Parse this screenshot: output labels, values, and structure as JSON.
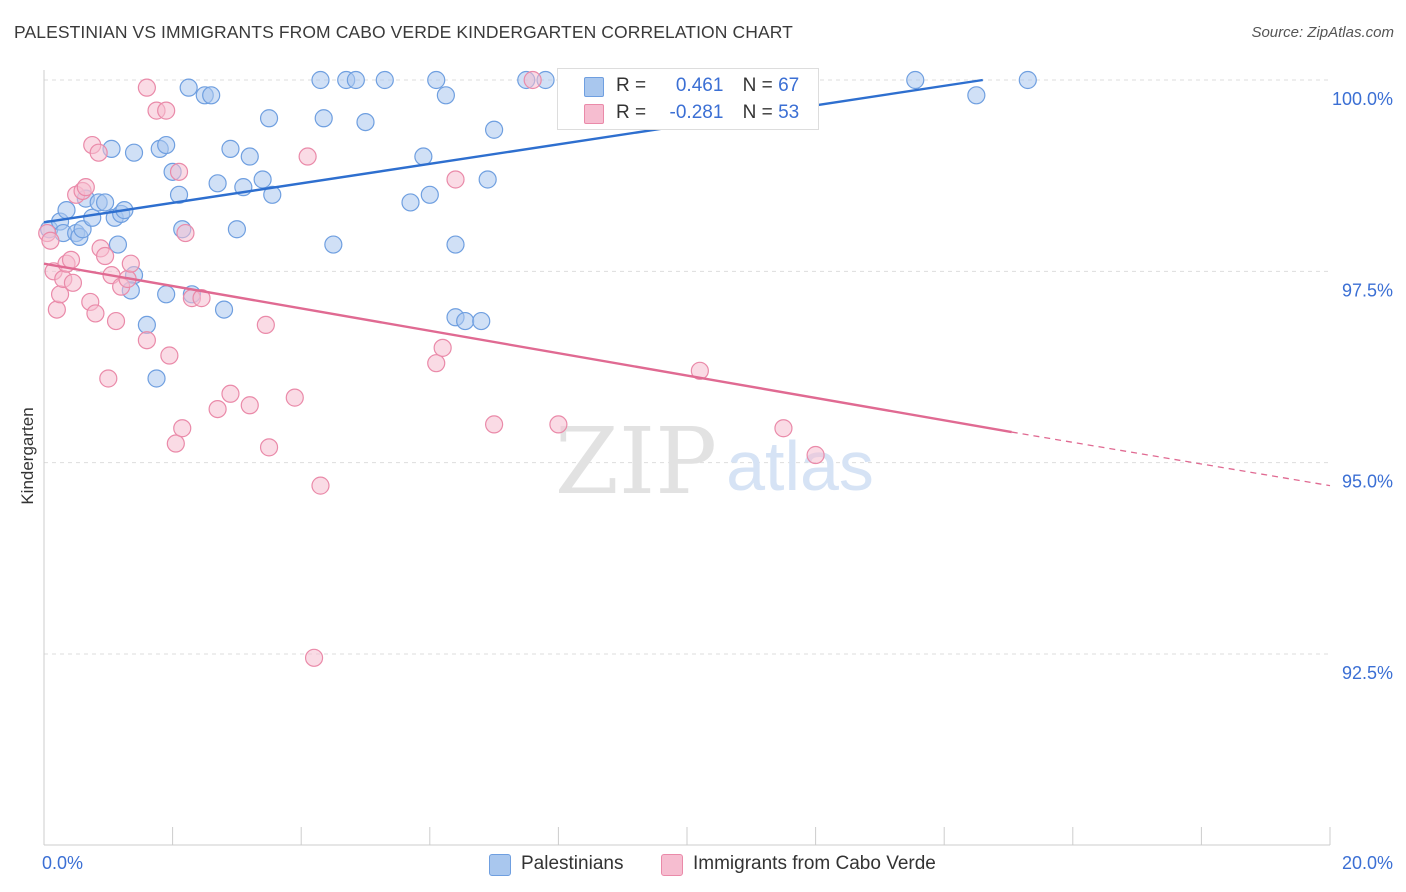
{
  "title": "PALESTINIAN VS IMMIGRANTS FROM CABO VERDE KINDERGARTEN CORRELATION CHART",
  "source": "Source: ZipAtlas.com",
  "watermark": {
    "zip": "ZIP",
    "atlas": "atlas"
  },
  "colors": {
    "blue": "#6f9fe0",
    "blue_fill": "#a9c7ee",
    "blue_line": "#2e6fcf",
    "pink": "#ea8aa9",
    "pink_fill": "#f6bdd0",
    "pink_line": "#e06a92",
    "axis_label": "#3b6fd4",
    "grid": "#dddddd"
  },
  "legend_top": {
    "rows": [
      {
        "r_label": "R =",
        "r_value": "0.461",
        "n_label": "N =",
        "n_value": "67"
      },
      {
        "r_label": "R =",
        "r_value": "-0.281",
        "n_label": "N =",
        "n_value": "53"
      }
    ]
  },
  "legend_bottom": [
    "Palestinians",
    "Immigrants from Cabo Verde"
  ],
  "chart_data": {
    "type": "scatter",
    "title": "PALESTINIAN VS IMMIGRANTS FROM CABO VERDE KINDERGARTEN CORRELATION CHART",
    "xlabel": "",
    "ylabel": "Kindergarten",
    "xlim": [
      0,
      20
    ],
    "ylim": [
      90.2,
      100.3
    ],
    "x_tick_labels": [
      "0.0%",
      "20.0%"
    ],
    "y_ticks": [
      92.5,
      95.0,
      97.5,
      100.0
    ],
    "y_tick_labels": [
      "92.5%",
      "95.0%",
      "97.5%",
      "100.0%"
    ],
    "grid": true,
    "series": [
      {
        "name": "Palestinians",
        "r": 0.461,
        "n": 67,
        "trend": {
          "x0": 0.0,
          "y0": 98.14,
          "x1": 14.6,
          "y1": 100.0,
          "dashed_to": null
        },
        "points": [
          [
            0.08,
            98.05
          ],
          [
            0.25,
            98.15
          ],
          [
            0.35,
            98.3
          ],
          [
            0.3,
            98.0
          ],
          [
            0.5,
            98.0
          ],
          [
            0.55,
            97.95
          ],
          [
            0.6,
            98.05
          ],
          [
            0.65,
            98.45
          ],
          [
            0.75,
            98.2
          ],
          [
            0.85,
            98.4
          ],
          [
            0.95,
            98.4
          ],
          [
            1.1,
            98.2
          ],
          [
            1.2,
            98.25
          ],
          [
            1.15,
            97.85
          ],
          [
            1.4,
            97.45
          ],
          [
            1.35,
            97.25
          ],
          [
            1.05,
            99.1
          ],
          [
            1.4,
            99.05
          ],
          [
            1.8,
            99.1
          ],
          [
            1.9,
            99.15
          ],
          [
            2.0,
            98.8
          ],
          [
            2.1,
            98.5
          ],
          [
            1.6,
            96.8
          ],
          [
            1.9,
            97.2
          ],
          [
            2.3,
            97.2
          ],
          [
            2.15,
            98.05
          ],
          [
            1.25,
            98.3
          ],
          [
            2.8,
            97.0
          ],
          [
            1.75,
            96.1
          ],
          [
            2.25,
            99.9
          ],
          [
            2.5,
            99.8
          ],
          [
            2.6,
            99.8
          ],
          [
            2.9,
            99.1
          ],
          [
            3.2,
            99.0
          ],
          [
            3.4,
            98.7
          ],
          [
            3.55,
            98.5
          ],
          [
            2.7,
            98.65
          ],
          [
            3.1,
            98.6
          ],
          [
            3.0,
            98.05
          ],
          [
            3.5,
            99.5
          ],
          [
            4.5,
            97.85
          ],
          [
            4.3,
            100.0
          ],
          [
            4.7,
            100.0
          ],
          [
            4.85,
            100.0
          ],
          [
            5.3,
            100.0
          ],
          [
            5.7,
            98.4
          ],
          [
            5.9,
            99.0
          ],
          [
            5.0,
            99.45
          ],
          [
            6.0,
            98.5
          ],
          [
            6.1,
            100.0
          ],
          [
            6.25,
            99.8
          ],
          [
            6.4,
            97.85
          ],
          [
            6.4,
            96.9
          ],
          [
            6.55,
            96.85
          ],
          [
            6.8,
            96.85
          ],
          [
            6.9,
            98.7
          ],
          [
            7.0,
            99.35
          ],
          [
            7.5,
            100.0
          ],
          [
            7.8,
            100.0
          ],
          [
            9.5,
            100.0
          ],
          [
            9.7,
            100.0
          ],
          [
            11.8,
            100.0
          ],
          [
            11.85,
            100.0
          ],
          [
            13.55,
            100.0
          ],
          [
            14.5,
            99.8
          ],
          [
            15.3,
            100.0
          ],
          [
            4.35,
            99.5
          ]
        ]
      },
      {
        "name": "Immigrants from Cabo Verde",
        "r": -0.281,
        "n": 53,
        "trend": {
          "x0": 0.0,
          "y0": 97.6,
          "x1": 15.05,
          "y1": 95.4,
          "dashed_to": {
            "x": 20.0,
            "y": 94.7
          }
        },
        "points": [
          [
            0.05,
            98.0
          ],
          [
            0.1,
            97.9
          ],
          [
            0.15,
            97.5
          ],
          [
            0.2,
            97.0
          ],
          [
            0.25,
            97.2
          ],
          [
            0.3,
            97.4
          ],
          [
            0.35,
            97.6
          ],
          [
            0.42,
            97.65
          ],
          [
            0.5,
            98.5
          ],
          [
            0.6,
            98.55
          ],
          [
            0.65,
            98.6
          ],
          [
            0.72,
            97.1
          ],
          [
            0.8,
            96.95
          ],
          [
            0.88,
            97.8
          ],
          [
            0.95,
            97.7
          ],
          [
            1.05,
            97.45
          ],
          [
            1.12,
            96.85
          ],
          [
            1.2,
            97.3
          ],
          [
            1.3,
            97.4
          ],
          [
            1.35,
            97.6
          ],
          [
            0.75,
            99.15
          ],
          [
            0.85,
            99.05
          ],
          [
            1.6,
            99.9
          ],
          [
            1.75,
            99.6
          ],
          [
            1.9,
            99.6
          ],
          [
            1.6,
            96.6
          ],
          [
            1.0,
            96.1
          ],
          [
            2.1,
            98.8
          ],
          [
            2.2,
            98.0
          ],
          [
            2.3,
            97.15
          ],
          [
            2.45,
            97.15
          ],
          [
            1.95,
            96.4
          ],
          [
            2.05,
            95.25
          ],
          [
            2.15,
            95.45
          ],
          [
            2.7,
            95.7
          ],
          [
            2.9,
            95.9
          ],
          [
            3.2,
            95.75
          ],
          [
            3.45,
            96.8
          ],
          [
            3.5,
            95.2
          ],
          [
            3.9,
            95.85
          ],
          [
            4.1,
            99.0
          ],
          [
            4.3,
            94.7
          ],
          [
            4.2,
            92.45
          ],
          [
            6.1,
            96.3
          ],
          [
            6.2,
            96.5
          ],
          [
            6.4,
            98.7
          ],
          [
            7.0,
            95.5
          ],
          [
            7.6,
            100.0
          ],
          [
            8.0,
            95.5
          ],
          [
            10.2,
            96.2
          ],
          [
            11.5,
            95.45
          ],
          [
            12.0,
            95.1
          ],
          [
            0.45,
            97.35
          ]
        ]
      }
    ]
  }
}
